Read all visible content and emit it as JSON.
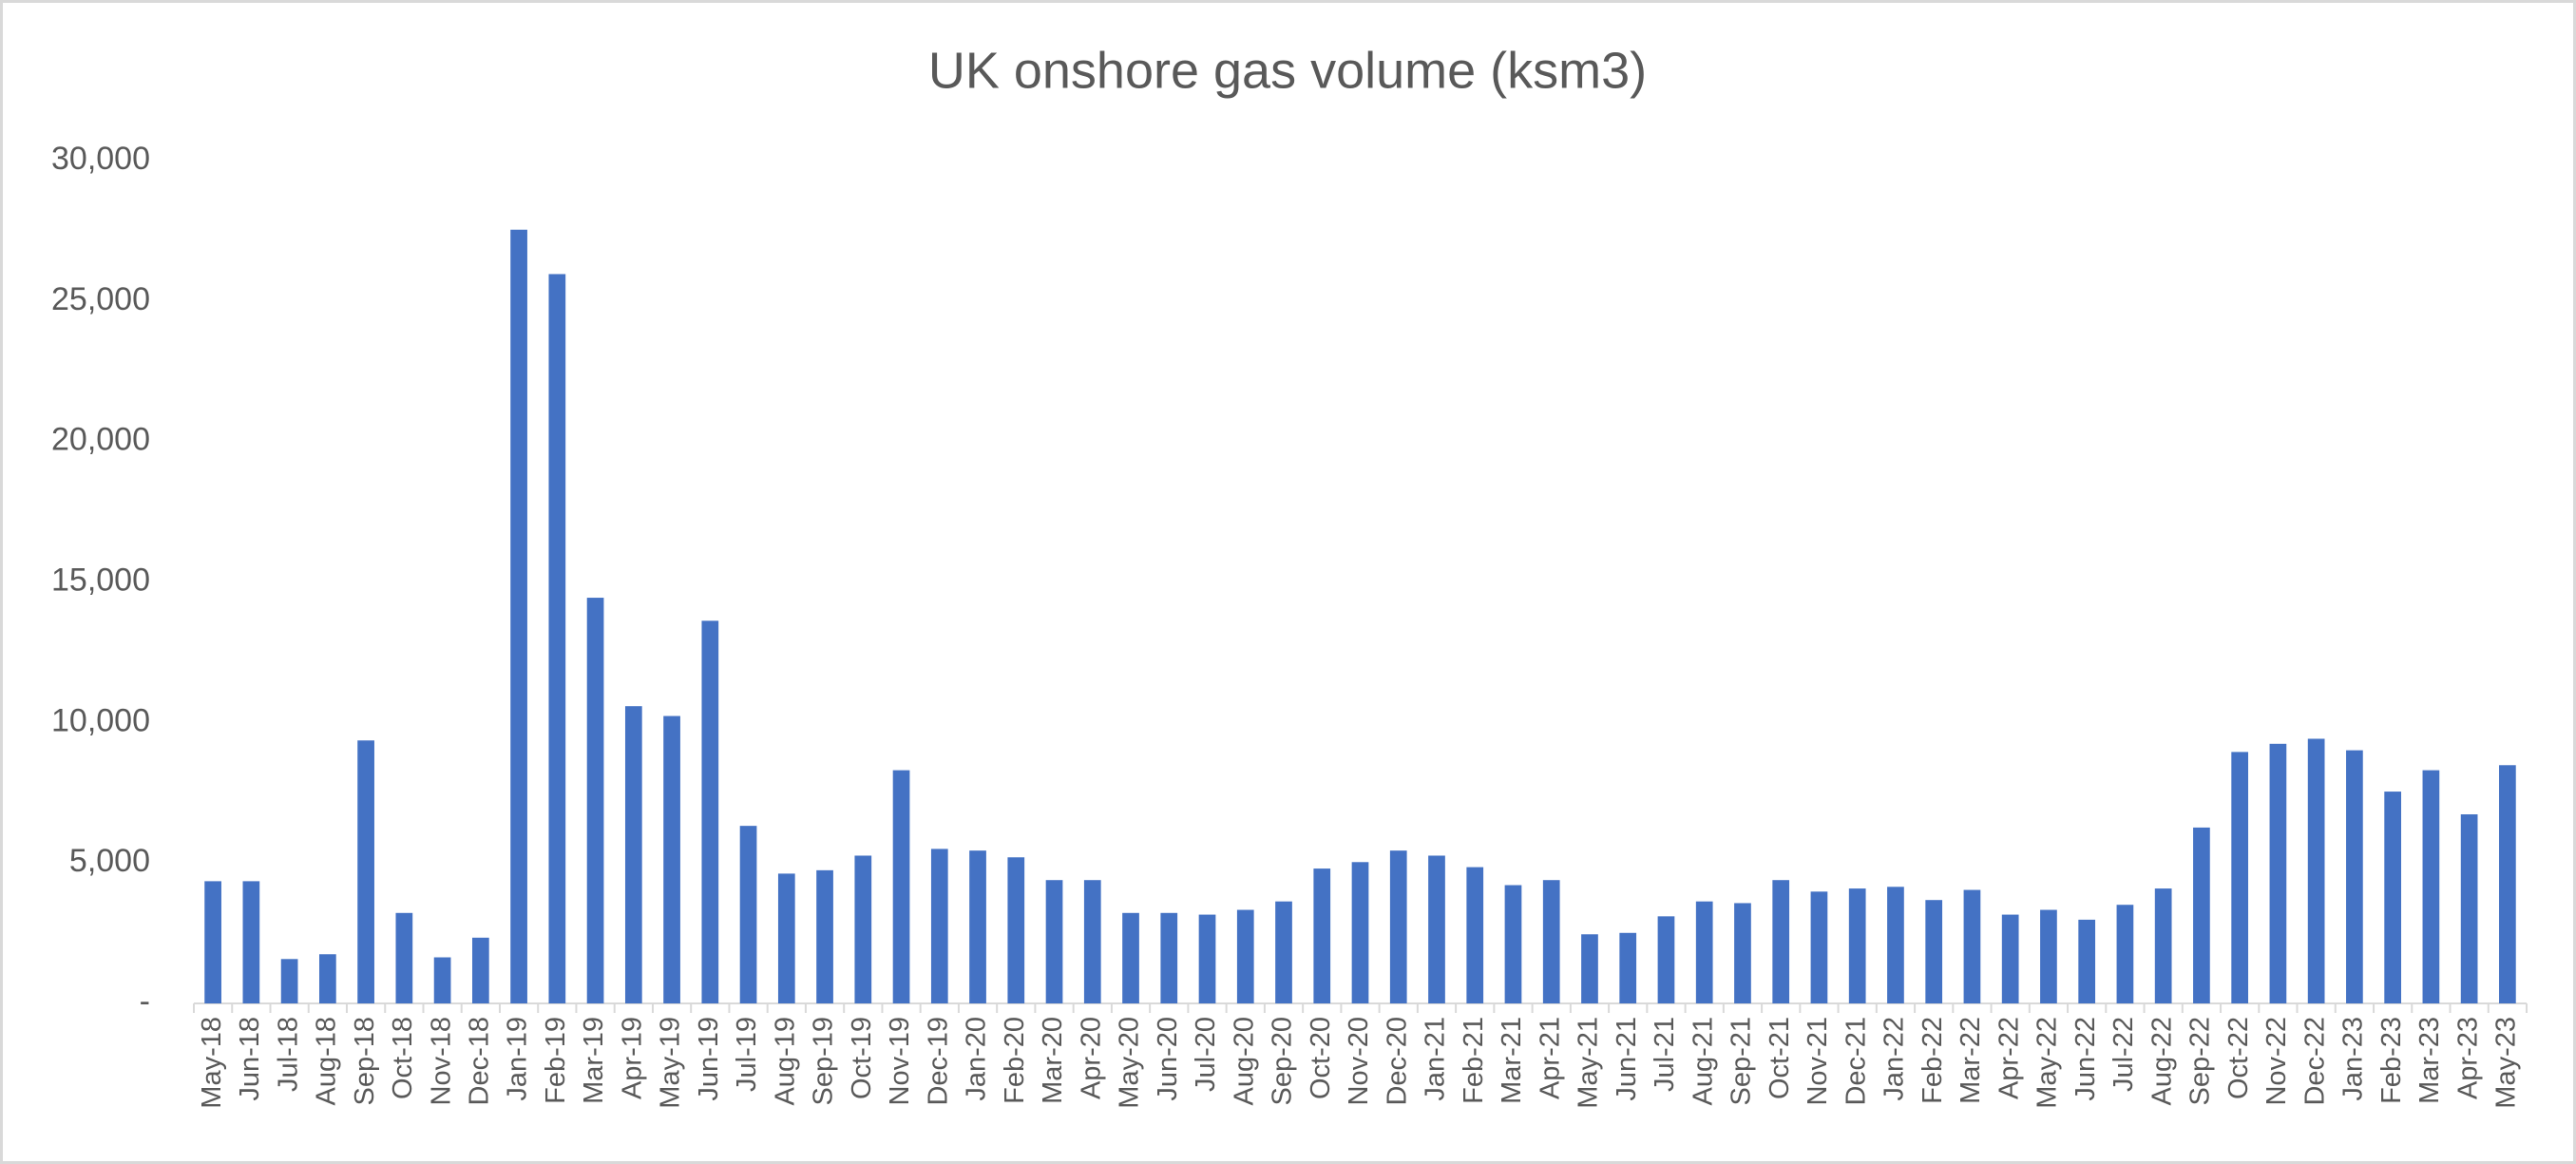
{
  "chart_data": {
    "type": "bar",
    "title": "UK onshore gas volume (ksm3)",
    "categories": [
      "May-18",
      "Jun-18",
      "Jul-18",
      "Aug-18",
      "Sep-18",
      "Oct-18",
      "Nov-18",
      "Dec-18",
      "Jan-19",
      "Feb-19",
      "Mar-19",
      "Apr-19",
      "May-19",
      "Jun-19",
      "Jul-19",
      "Aug-19",
      "Sep-19",
      "Oct-19",
      "Nov-19",
      "Dec-19",
      "Jan-20",
      "Feb-20",
      "Mar-20",
      "Apr-20",
      "May-20",
      "Jun-20",
      "Jul-20",
      "Aug-20",
      "Sep-20",
      "Oct-20",
      "Nov-20",
      "Dec-20",
      "Jan-21",
      "Feb-21",
      "Mar-21",
      "Apr-21",
      "May-21",
      "Jun-21",
      "Jul-21",
      "Aug-21",
      "Sep-21",
      "Oct-21",
      "Nov-21",
      "Dec-21",
      "Jan-22",
      "Feb-22",
      "Mar-22",
      "Apr-22",
      "May-22",
      "Jun-22",
      "Jul-22",
      "Aug-22",
      "Sep-22",
      "Oct-22",
      "Nov-22",
      "Dec-22",
      "Jan-23",
      "Feb-23",
      "Mar-23",
      "Apr-23",
      "May-23"
    ],
    "values": [
      4350,
      4350,
      1580,
      1750,
      9360,
      3220,
      1640,
      2340,
      27540,
      25960,
      14440,
      10580,
      10230,
      13620,
      6320,
      4620,
      4740,
      5260,
      8300,
      5500,
      5440,
      5200,
      4390,
      4390,
      3220,
      3220,
      3160,
      3330,
      3630,
      4800,
      5030,
      5440,
      5260,
      4850,
      4210,
      4390,
      2460,
      2510,
      3100,
      3630,
      3570,
      4390,
      3980,
      4090,
      4150,
      3680,
      4040,
      3160,
      3330,
      2980,
      3510,
      4090,
      6260,
      8950,
      9240,
      9420,
      9010,
      7540,
      8300,
      6730,
      8480
    ],
    "color": "#4472c4",
    "ylim": [
      0,
      30000
    ],
    "yticks": [
      {
        "value": 0,
        "label": "-"
      },
      {
        "value": 5000,
        "label": "5,000"
      },
      {
        "value": 10000,
        "label": "10,000"
      },
      {
        "value": 15000,
        "label": "15,000"
      },
      {
        "value": 20000,
        "label": "20,000"
      },
      {
        "value": 25000,
        "label": "25,000"
      },
      {
        "value": 30000,
        "label": "30,000"
      }
    ],
    "grid": false
  }
}
